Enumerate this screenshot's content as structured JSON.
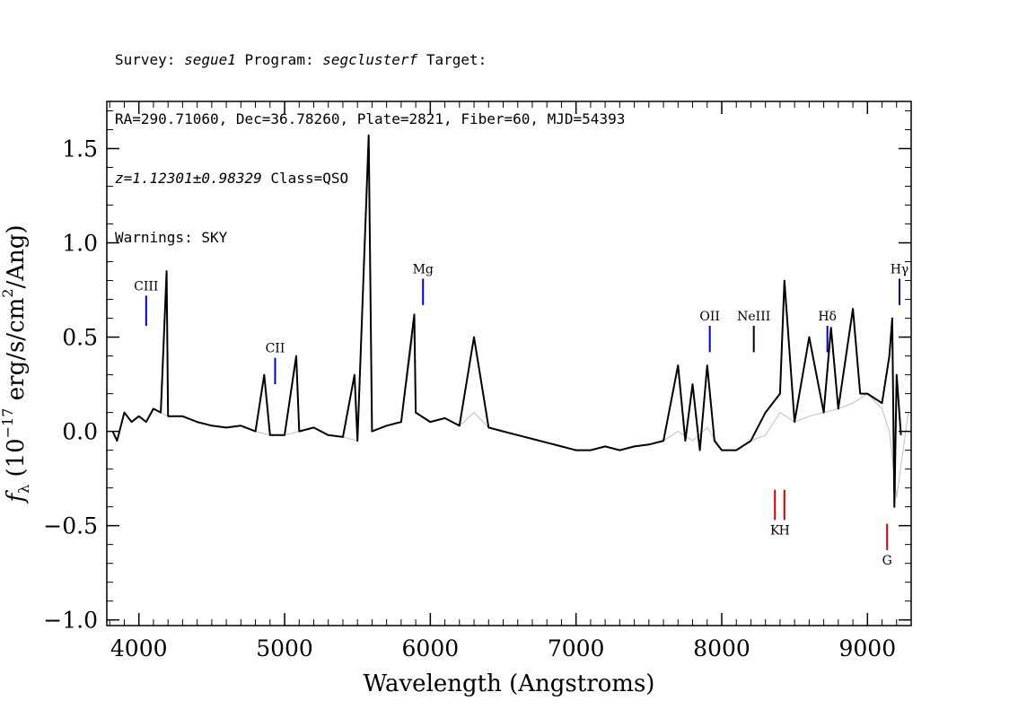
{
  "header": {
    "survey_label": "Survey:",
    "survey_value": "segue1",
    "program_label": "Program:",
    "program_value": "segclusterf",
    "target_label": "Target:",
    "line2": "RA=290.71060, Dec=36.78260, Plate=2821, Fiber=60, MJD=54393",
    "redshift": "z=1.12301±0.98329",
    "class_text": "Class=QSO",
    "warnings": "Warnings: SKY"
  },
  "chart_data": {
    "type": "line",
    "xlabel": "Wavelength (Angstroms)",
    "ylabel": "f_λ (10^-17 erg/s/cm^2/Ang)",
    "xlim": [
      3780,
      9300
    ],
    "ylim": [
      -1.03,
      1.75
    ],
    "x_ticks": [
      "4000",
      "5000",
      "6000",
      "7000",
      "8000",
      "9000"
    ],
    "y_ticks": [
      "1.5",
      "1.0",
      "0.5",
      "0.0",
      "−0.5",
      "−1.0"
    ],
    "y_tick_values": [
      1.5,
      1.0,
      0.5,
      0.0,
      -0.5,
      -1.0
    ],
    "x_tick_values": [
      4000,
      5000,
      6000,
      7000,
      8000,
      9000
    ],
    "grid": false,
    "series": [
      {
        "color": "#bfbfbf",
        "x": [
          3820,
          3850,
          3900,
          3950,
          4000,
          4050,
          4100,
          4150,
          4200,
          4300,
          4400,
          4500,
          4600,
          4700,
          4800,
          4900,
          5000,
          5100,
          5200,
          5300,
          5400,
          5500,
          5577,
          5600,
          5700,
          5800,
          5890,
          5900,
          6000,
          6100,
          6200,
          6300,
          6400,
          6500,
          6600,
          6700,
          6800,
          6900,
          7000,
          7100,
          7200,
          7300,
          7400,
          7500,
          7600,
          7700,
          7800,
          7900,
          8000,
          8100,
          8200,
          8300,
          8400,
          8500,
          8600,
          8700,
          8800,
          8900,
          9000,
          9100,
          9150,
          9200,
          9280
        ],
        "y": [
          0.0,
          -0.05,
          0.1,
          0.05,
          0.08,
          0.05,
          0.12,
          0.1,
          0.08,
          0.08,
          0.05,
          0.03,
          0.02,
          0.03,
          0.0,
          -0.02,
          -0.02,
          0.0,
          0.02,
          -0.02,
          -0.03,
          -0.05,
          1.55,
          0.0,
          0.03,
          0.05,
          0.55,
          0.1,
          0.05,
          0.07,
          0.03,
          0.1,
          0.02,
          0.0,
          -0.02,
          -0.04,
          -0.06,
          -0.08,
          -0.1,
          -0.1,
          -0.08,
          -0.1,
          -0.08,
          -0.07,
          -0.05,
          0.0,
          -0.05,
          0.02,
          -0.1,
          -0.1,
          -0.05,
          -0.02,
          0.1,
          0.05,
          0.08,
          0.1,
          0.12,
          0.15,
          0.2,
          0.12,
          0.0,
          -0.35,
          0.1
        ]
      },
      {
        "color": "#000000",
        "x": [
          3820,
          3850,
          3900,
          3950,
          4000,
          4050,
          4100,
          4150,
          4190,
          4200,
          4300,
          4400,
          4500,
          4600,
          4700,
          4800,
          4860,
          4900,
          5000,
          5080,
          5100,
          5200,
          5300,
          5400,
          5480,
          5500,
          5577,
          5600,
          5700,
          5800,
          5890,
          5900,
          6000,
          6100,
          6200,
          6300,
          6400,
          6500,
          6600,
          6700,
          6800,
          6900,
          7000,
          7100,
          7200,
          7300,
          7400,
          7500,
          7600,
          7700,
          7750,
          7800,
          7850,
          7900,
          7950,
          8000,
          8100,
          8200,
          8300,
          8400,
          8430,
          8500,
          8600,
          8700,
          8750,
          8800,
          8900,
          8950,
          9000,
          9100,
          9150,
          9170,
          9185,
          9200,
          9230
        ],
        "y": [
          0.0,
          -0.05,
          0.1,
          0.05,
          0.08,
          0.05,
          0.12,
          0.1,
          0.85,
          0.08,
          0.08,
          0.05,
          0.03,
          0.02,
          0.03,
          0.0,
          0.3,
          -0.02,
          -0.02,
          0.4,
          0.0,
          0.02,
          -0.02,
          -0.03,
          0.3,
          -0.05,
          1.57,
          0.0,
          0.03,
          0.05,
          0.62,
          0.1,
          0.05,
          0.07,
          0.03,
          0.5,
          0.02,
          0.0,
          -0.02,
          -0.04,
          -0.06,
          -0.08,
          -0.1,
          -0.1,
          -0.08,
          -0.1,
          -0.08,
          -0.07,
          -0.05,
          0.35,
          -0.05,
          0.25,
          -0.1,
          0.35,
          -0.05,
          -0.1,
          -0.1,
          -0.05,
          0.1,
          0.2,
          0.8,
          0.05,
          0.5,
          0.1,
          0.55,
          0.12,
          0.65,
          0.2,
          0.2,
          0.15,
          0.4,
          0.6,
          -0.4,
          0.3,
          -0.02
        ]
      }
    ],
    "lines": [
      {
        "label": "CIII",
        "wavelength": 4050,
        "color": "#0000cc",
        "y_top": 0.72,
        "y_bottom": 0.56,
        "position": "above"
      },
      {
        "label": "CII",
        "wavelength": 4935,
        "color": "#0000cc",
        "y_top": 0.39,
        "y_bottom": 0.25,
        "position": "above"
      },
      {
        "label": "Mg",
        "wavelength": 5950,
        "color": "#0000cc",
        "y_top": 0.81,
        "y_bottom": 0.67,
        "position": "above"
      },
      {
        "label": "OII",
        "wavelength": 7918,
        "color": "#0000cc",
        "y_top": 0.56,
        "y_bottom": 0.42,
        "position": "above"
      },
      {
        "label": "NeIII",
        "wavelength": 8220,
        "color": "#000000",
        "y_top": 0.56,
        "y_bottom": 0.42,
        "position": "above"
      },
      {
        "label": "Hδ",
        "wavelength": 8725,
        "color": "#0000cc",
        "y_top": 0.56,
        "y_bottom": 0.42,
        "position": "above"
      },
      {
        "label": "Hγ",
        "wavelength": 9220,
        "color": "#0000cc",
        "y_top": 0.81,
        "y_bottom": 0.67,
        "position": "above"
      },
      {
        "label": "K",
        "wavelength": 8365,
        "color": "#cc0000",
        "y_top": -0.31,
        "y_bottom": -0.47,
        "position": "below"
      },
      {
        "label": "H",
        "wavelength": 8430,
        "color": "#cc0000",
        "y_top": -0.31,
        "y_bottom": -0.47,
        "position": "below"
      },
      {
        "label": "G",
        "wavelength": 9135,
        "color": "#cc0000",
        "y_top": -0.49,
        "y_bottom": -0.63,
        "position": "below"
      }
    ]
  }
}
